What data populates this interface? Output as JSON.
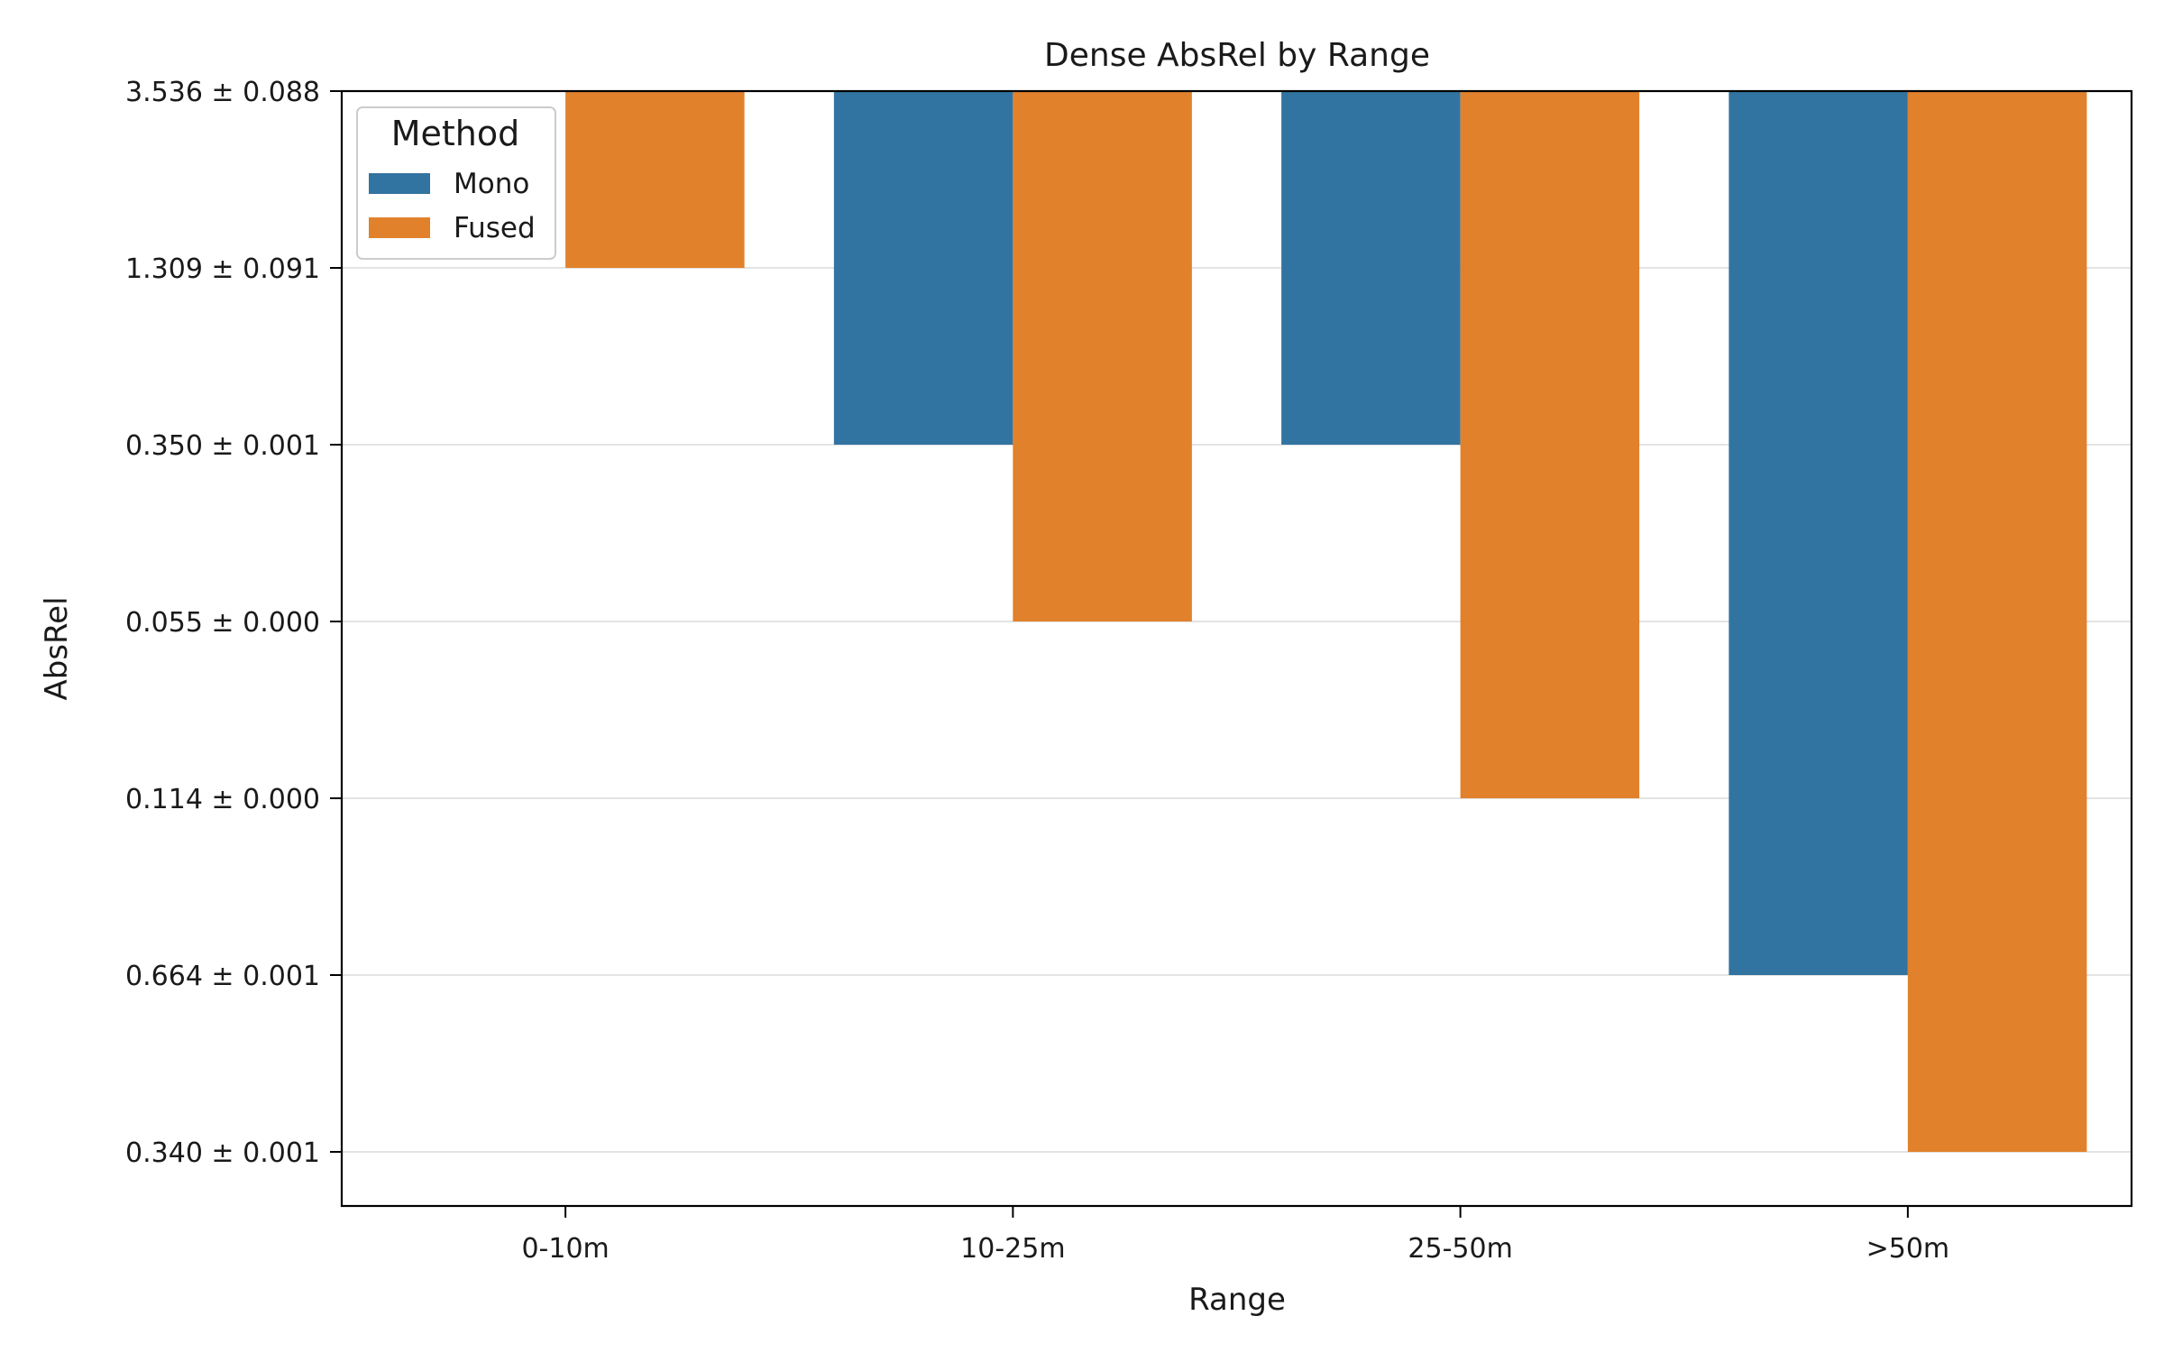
{
  "chart_data": {
    "type": "bar",
    "title": "Dense AbsRel by Range",
    "xlabel": "Range",
    "ylabel": "AbsRel",
    "categories": [
      "0-10m",
      "10-25m",
      "25-50m",
      ">50m"
    ],
    "y_tick_labels": [
      "3.536 ± 0.088",
      "1.309 ± 0.091",
      "0.350 ± 0.001",
      "0.055 ± 0.000",
      "0.114 ± 0.000",
      "0.664 ± 0.001",
      "0.340 ± 0.001"
    ],
    "series": [
      {
        "name": "Mono",
        "color": "#3274a1",
        "bar_end_tick_index": [
          null,
          2,
          2,
          5
        ]
      },
      {
        "name": "Fused",
        "color": "#e1812c",
        "bar_end_tick_index": [
          1,
          3,
          4,
          6
        ]
      }
    ],
    "legend": {
      "title": "Method",
      "position": "top-left"
    },
    "grid": "y"
  }
}
